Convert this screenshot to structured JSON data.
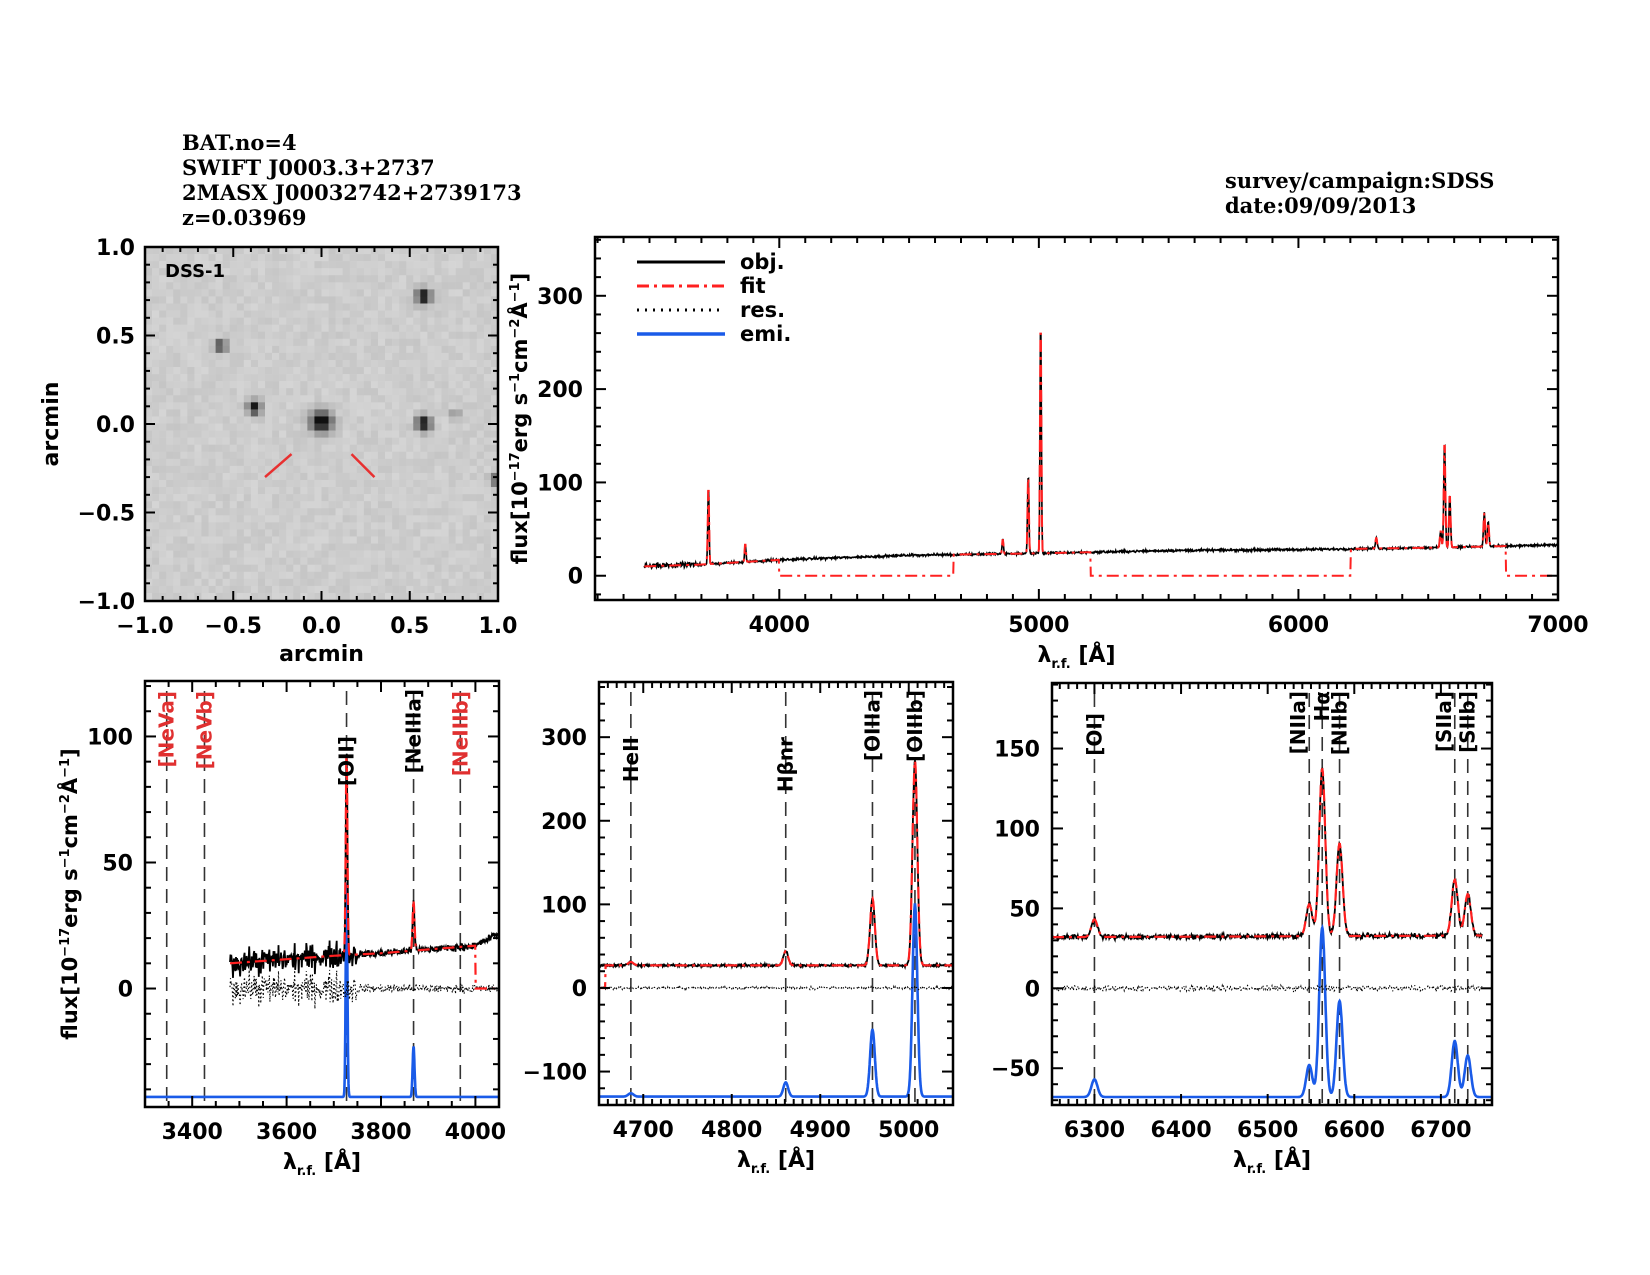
{
  "header": {
    "left_lines": [
      "BAT.no=4",
      "SWIFT J0003.3+2737",
      "2MASX J00032742+2739173",
      "z=0.03969"
    ],
    "right_lines": [
      "survey/campaign:SDSS",
      "date:09/09/2013"
    ]
  },
  "colors": {
    "obj": "#000000",
    "fit": "#ff2020",
    "res": "#000000",
    "emi": "#1a5be8",
    "marker": "#e83030",
    "line_label_black": "#000000",
    "line_label_red": "#e03030"
  },
  "chart_data": [
    {
      "id": "image",
      "type": "heatmap",
      "title": "DSS-1",
      "xlabel": "arcmin",
      "ylabel": "arcmin",
      "xlim": [
        -1.0,
        1.0
      ],
      "ylim": [
        -1.0,
        1.0
      ],
      "xticks": [
        "-1.0",
        "-0.5",
        "0.0",
        "0.5",
        "1.0"
      ],
      "yticks": [
        "-1.0",
        "-0.5",
        "0.0",
        "0.5",
        "1.0"
      ],
      "tick_values": [
        -1.0,
        -0.5,
        0.0,
        0.5,
        1.0
      ],
      "sources": [
        {
          "x": 0.0,
          "y": 0.01,
          "strength": 1.0,
          "size": 1.4
        },
        {
          "x": 0.58,
          "y": 0.72,
          "strength": 0.9,
          "size": 1.0
        },
        {
          "x": -0.57,
          "y": 0.44,
          "strength": 0.7,
          "size": 0.8
        },
        {
          "x": -0.38,
          "y": 0.09,
          "strength": 0.85,
          "size": 0.9
        },
        {
          "x": 0.58,
          "y": 0.0,
          "strength": 0.9,
          "size": 1.0
        },
        {
          "x": 1.0,
          "y": -0.32,
          "strength": 0.6,
          "size": 0.9
        },
        {
          "x": 0.76,
          "y": 0.05,
          "strength": 0.35,
          "size": 0.6
        }
      ],
      "markers": [
        {
          "x1": -0.32,
          "y1": -0.3,
          "x2": -0.17,
          "y2": -0.17
        },
        {
          "x1": 0.17,
          "y1": -0.17,
          "x2": 0.3,
          "y2": -0.3
        }
      ]
    },
    {
      "id": "full",
      "type": "line",
      "xlabel": "λr.f. [Å]",
      "ylabel": "flux[10^-17 erg s^-1 cm^-2 Å^-1]",
      "xlim": [
        3290,
        7000
      ],
      "ylim": [
        -26,
        363
      ],
      "xticks": [
        4000,
        5000,
        6000,
        7000
      ],
      "yticks": [
        0,
        100,
        200,
        300
      ],
      "xminor": 100,
      "yminor": 20,
      "legend": {
        "position": "top-left",
        "entries": [
          "obj.",
          "fit",
          "res.",
          "emi."
        ]
      },
      "spectrum_range": [
        3480,
        7000
      ],
      "continuum": [
        [
          3480,
          10
        ],
        [
          3700,
          12
        ],
        [
          4000,
          17
        ],
        [
          4500,
          22
        ],
        [
          5000,
          24
        ],
        [
          5500,
          27
        ],
        [
          6000,
          28
        ],
        [
          6500,
          30
        ],
        [
          7000,
          33
        ]
      ],
      "lines": [
        {
          "center": 3727,
          "amp": 85,
          "sigma": 2.5
        },
        {
          "center": 3869,
          "amp": 20,
          "sigma": 2.5
        },
        {
          "center": 4861,
          "amp": 16,
          "sigma": 2.5
        },
        {
          "center": 4959,
          "amp": 87,
          "sigma": 2.5
        },
        {
          "center": 5007,
          "amp": 255,
          "sigma": 2.5
        },
        {
          "center": 6300,
          "amp": 12,
          "sigma": 3
        },
        {
          "center": 6548,
          "amp": 18,
          "sigma": 3
        },
        {
          "center": 6563,
          "amp": 115,
          "sigma": 3
        },
        {
          "center": 6583,
          "amp": 57,
          "sigma": 3
        },
        {
          "center": 6716,
          "amp": 36,
          "sigma": 3
        },
        {
          "center": 6731,
          "amp": 27,
          "sigma": 3
        }
      ],
      "fit_zero_segments": [
        [
          4000,
          4670
        ],
        [
          5200,
          6200
        ],
        [
          6800,
          7000
        ]
      ]
    },
    {
      "id": "blue",
      "type": "line",
      "xlabel": "λr.f. [Å]",
      "ylabel": "flux[10^-17 erg s^-1 cm^-2 Å^-1]",
      "xlim": [
        3300,
        4050
      ],
      "ylim": [
        -47,
        122
      ],
      "xticks": [
        3400,
        3600,
        3800,
        4000
      ],
      "yticks": [
        0,
        50,
        100
      ],
      "xminor": 50,
      "yminor": 10,
      "spectrum_range": [
        3480,
        4050
      ],
      "fit_range": [
        3480,
        4000
      ],
      "continuum": [
        [
          3480,
          10
        ],
        [
          3700,
          13
        ],
        [
          3800,
          14
        ],
        [
          4000,
          17
        ],
        [
          4050,
          22
        ]
      ],
      "emi_baseline": -43,
      "lines": [
        {
          "center": 3727,
          "amp": 82,
          "sigma": 1.8,
          "emi_amp": 85
        },
        {
          "center": 3869,
          "amp": 20,
          "sigma": 2.0,
          "emi_amp": 20
        }
      ],
      "markers": [
        {
          "center": 3346,
          "label": "[NeVa]",
          "color": "red"
        },
        {
          "center": 3426,
          "label": "[NeVb]",
          "color": "red"
        },
        {
          "center": 3727,
          "label": "[OII]",
          "color": "black"
        },
        {
          "center": 3869,
          "label": "[NeIIIa]",
          "color": "black"
        },
        {
          "center": 3968,
          "label": "[NeIIIb]",
          "color": "red"
        }
      ]
    },
    {
      "id": "hbeta",
      "type": "line",
      "xlabel": "λr.f. [Å]",
      "ylabel": "",
      "xlim": [
        4650,
        5050
      ],
      "ylim": [
        -140,
        366
      ],
      "xticks": [
        4700,
        4800,
        4900,
        5000
      ],
      "yticks": [
        -100,
        0,
        100,
        200,
        300
      ],
      "xminor": 10,
      "yminor": 20,
      "spectrum_range": [
        4650,
        5050
      ],
      "fit_range": [
        4657,
        5050
      ],
      "continuum": [
        [
          4650,
          27
        ],
        [
          5050,
          27
        ]
      ],
      "emi_baseline": -130,
      "lines": [
        {
          "center": 4686,
          "amp": 4,
          "sigma": 3.0,
          "emi_amp": 4
        },
        {
          "center": 4861,
          "amp": 17,
          "sigma": 2.7,
          "emi_amp": 17
        },
        {
          "center": 4959,
          "amp": 80,
          "sigma": 2.7,
          "emi_amp": 80
        },
        {
          "center": 5007,
          "amp": 245,
          "sigma": 2.7,
          "emi_amp": 230
        }
      ],
      "markers": [
        {
          "center": 4686,
          "label": "HeII",
          "color": "black"
        },
        {
          "center": 4861,
          "label": "Hβnr",
          "color": "black"
        },
        {
          "center": 4959,
          "label": "[OIIIa]",
          "color": "black"
        },
        {
          "center": 5007,
          "label": "[OIIIb]",
          "color": "black"
        }
      ]
    },
    {
      "id": "halpha",
      "type": "line",
      "xlabel": "λr.f. [Å]",
      "ylabel": "",
      "xlim": [
        6251,
        6759
      ],
      "ylim": [
        -73,
        191
      ],
      "xticks": [
        6300,
        6400,
        6500,
        6600,
        6700
      ],
      "yticks": [
        -50,
        0,
        50,
        100,
        150
      ],
      "xminor": 10,
      "yminor": 10,
      "spectrum_range": [
        6251,
        6748
      ],
      "fit_range": [
        6251,
        6748
      ],
      "continuum": [
        [
          6251,
          32
        ],
        [
          6748,
          33
        ]
      ],
      "emi_baseline": -68,
      "lines": [
        {
          "center": 6300,
          "amp": 11,
          "sigma": 3.5,
          "emi_amp": 11
        },
        {
          "center": 6548,
          "amp": 20,
          "sigma": 3.5,
          "emi_amp": 20
        },
        {
          "center": 6563,
          "amp": 105,
          "sigma": 3.5,
          "emi_amp": 106
        },
        {
          "center": 6583,
          "amp": 58,
          "sigma": 3.5,
          "emi_amp": 60
        },
        {
          "center": 6716,
          "amp": 35,
          "sigma": 3.5,
          "emi_amp": 35
        },
        {
          "center": 6731,
          "amp": 26,
          "sigma": 3.5,
          "emi_amp": 26
        }
      ],
      "markers": [
        {
          "center": 6300,
          "label": "[OI]",
          "color": "black"
        },
        {
          "center": 6548,
          "label": "[NIIa]",
          "color": "black"
        },
        {
          "center": 6563,
          "label": "Hα",
          "color": "black"
        },
        {
          "center": 6583,
          "label": "[NIIb]",
          "color": "black"
        },
        {
          "center": 6716,
          "label": "[SIIa]",
          "color": "black"
        },
        {
          "center": 6731,
          "label": "[SIIb]",
          "color": "black"
        }
      ]
    }
  ]
}
